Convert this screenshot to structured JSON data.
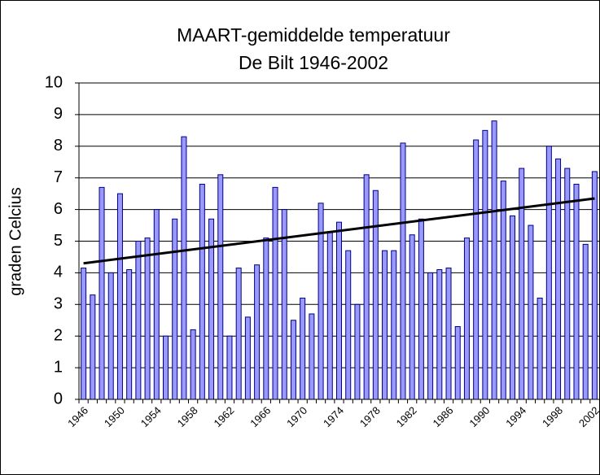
{
  "chart_data": {
    "type": "bar",
    "title": [
      "MAART-gemiddelde temperatuur",
      "De Bilt 1946-2002"
    ],
    "y_label": "graden Celcius",
    "categories": [
      "1946",
      null,
      null,
      null,
      "1950",
      null,
      null,
      null,
      "1954",
      null,
      null,
      null,
      "1958",
      null,
      null,
      null,
      "1962",
      null,
      null,
      null,
      "1966",
      null,
      null,
      null,
      "1970",
      null,
      null,
      null,
      "1974",
      null,
      null,
      null,
      "1978",
      null,
      null,
      null,
      "1982",
      null,
      null,
      null,
      "1986",
      null,
      null,
      null,
      "1990",
      null,
      null,
      null,
      "1994",
      null,
      null,
      null,
      "1998",
      null,
      null,
      null,
      "2002"
    ],
    "values": [
      4.15,
      3.3,
      6.7,
      4.0,
      6.5,
      4.1,
      5.0,
      5.1,
      6.0,
      2.0,
      5.7,
      8.3,
      2.2,
      6.8,
      5.7,
      7.1,
      2.0,
      4.15,
      2.6,
      4.25,
      5.1,
      6.7,
      6.0,
      2.5,
      3.2,
      2.7,
      6.2,
      5.3,
      5.6,
      4.7,
      3.0,
      7.1,
      6.6,
      4.7,
      4.7,
      8.1,
      5.2,
      5.7,
      4.0,
      4.1,
      4.15,
      2.3,
      5.1,
      8.2,
      8.5,
      8.8,
      6.9,
      5.8,
      7.3,
      5.5,
      3.2,
      8.0,
      7.6,
      7.3,
      6.8,
      4.9,
      7.2
    ],
    "color": "#9999ff",
    "trendline": {
      "start": 4.3,
      "end": 6.35,
      "color": "#000000"
    },
    "ylim": [
      0,
      10
    ],
    "yticks": [
      0,
      1,
      2,
      3,
      4,
      5,
      6,
      7,
      8,
      9,
      10
    ],
    "grid": true
  }
}
